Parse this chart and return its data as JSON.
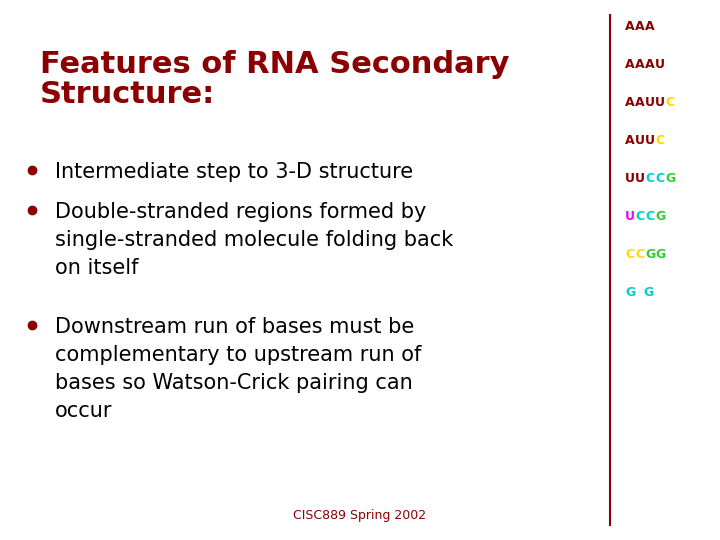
{
  "background_color": "#ffffff",
  "title_line1": "Features of RNA Secondary",
  "title_line2": "Structure:",
  "title_color": "#8B0000",
  "title_fontsize": 22,
  "bullet_color": "#8B0000",
  "bullet_fontsize": 15,
  "bullet_items": [
    "Intermediate step to 3-D structure",
    "Double-stranded regions formed by\nsingle-stranded molecule folding back\non itself",
    "Downstream run of bases must be\ncomplementary to upstream run of\nbases so Watson-Crick pairing can\noccur"
  ],
  "footer_text": "CISC889 Spring 2002",
  "footer_color": "#8B0000",
  "footer_fontsize": 9,
  "divider_color": "#8B0000",
  "rna_sequences": [
    {
      "text": "AAA",
      "chars": [
        "A",
        "A",
        "A"
      ],
      "colors": [
        "#8B0000",
        "#8B0000",
        "#8B0000"
      ]
    },
    {
      "text": "AAAU",
      "chars": [
        "A",
        "A",
        "A",
        "U"
      ],
      "colors": [
        "#8B0000",
        "#8B0000",
        "#8B0000",
        "#8B0000"
      ]
    },
    {
      "text": "AAUUC",
      "chars": [
        "A",
        "A",
        "U",
        "U",
        "C"
      ],
      "colors": [
        "#8B0000",
        "#8B0000",
        "#8B0000",
        "#8B0000",
        "#FFD700"
      ]
    },
    {
      "text": "AUUC",
      "chars": [
        "A",
        "U",
        "U",
        "C"
      ],
      "colors": [
        "#8B0000",
        "#8B0000",
        "#8B0000",
        "#FFD700"
      ]
    },
    {
      "text": "UUCCG",
      "chars": [
        "U",
        "U",
        "C",
        "C",
        "G"
      ],
      "colors": [
        "#8B0000",
        "#8B0000",
        "#00CED1",
        "#00CED1",
        "#32CD32"
      ]
    },
    {
      "text": "UCCG",
      "chars": [
        "U",
        "C",
        "C",
        "G"
      ],
      "colors": [
        "#FF00FF",
        "#00CED1",
        "#00CED1",
        "#32CD32"
      ]
    },
    {
      "text": "CCGG",
      "chars": [
        "C",
        "C",
        "G",
        "G"
      ],
      "colors": [
        "#FFD700",
        "#FFD700",
        "#32CD32",
        "#32CD32"
      ]
    },
    {
      "text": "G G",
      "chars": [
        "G",
        " ",
        "G"
      ],
      "colors": [
        "#00CED1",
        "",
        "#00CED1"
      ]
    }
  ]
}
